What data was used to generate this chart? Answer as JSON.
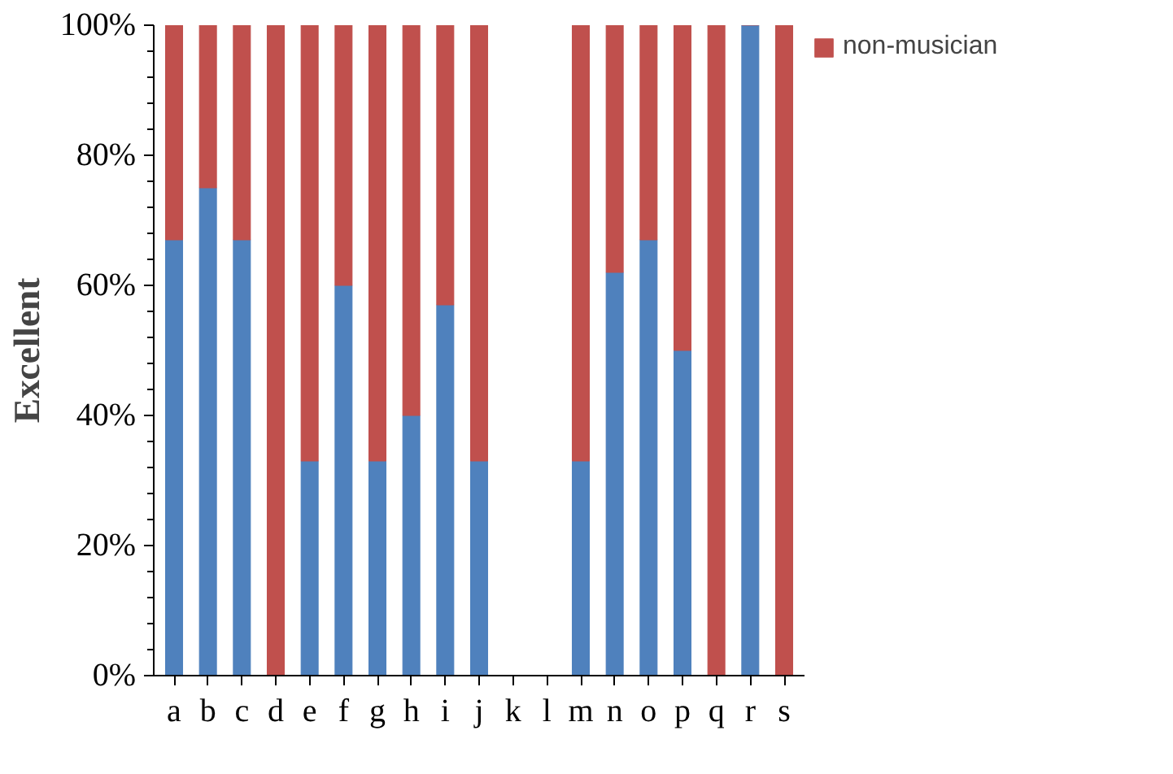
{
  "chart_data": {
    "type": "bar",
    "stacked": true,
    "ylabel": "Excellent",
    "categories": [
      "a",
      "b",
      "c",
      "d",
      "e",
      "f",
      "g",
      "h",
      "i",
      "j",
      "k",
      "l",
      "m",
      "n",
      "o",
      "p",
      "q",
      "r",
      "s"
    ],
    "series": [
      {
        "color": "#4f81bd",
        "values": [
          67,
          75,
          67,
          0,
          33,
          60,
          33,
          40,
          57,
          33,
          null,
          null,
          33,
          62,
          67,
          50,
          0,
          100,
          0
        ]
      },
      {
        "name": "non-musician",
        "color": "#c0504d",
        "values": [
          33,
          25,
          33,
          100,
          67,
          40,
          67,
          60,
          43,
          67,
          null,
          null,
          67,
          38,
          33,
          50,
          100,
          0,
          100
        ]
      }
    ],
    "ylim": [
      0,
      100
    ],
    "yticks": [
      {
        "value": 0,
        "label": "0%"
      },
      {
        "value": 20,
        "label": "20%"
      },
      {
        "value": 40,
        "label": "40%"
      },
      {
        "value": 60,
        "label": "60%"
      },
      {
        "value": 80,
        "label": "80%"
      },
      {
        "value": 100,
        "label": "100%"
      }
    ],
    "grid": false,
    "legend": "top right"
  }
}
